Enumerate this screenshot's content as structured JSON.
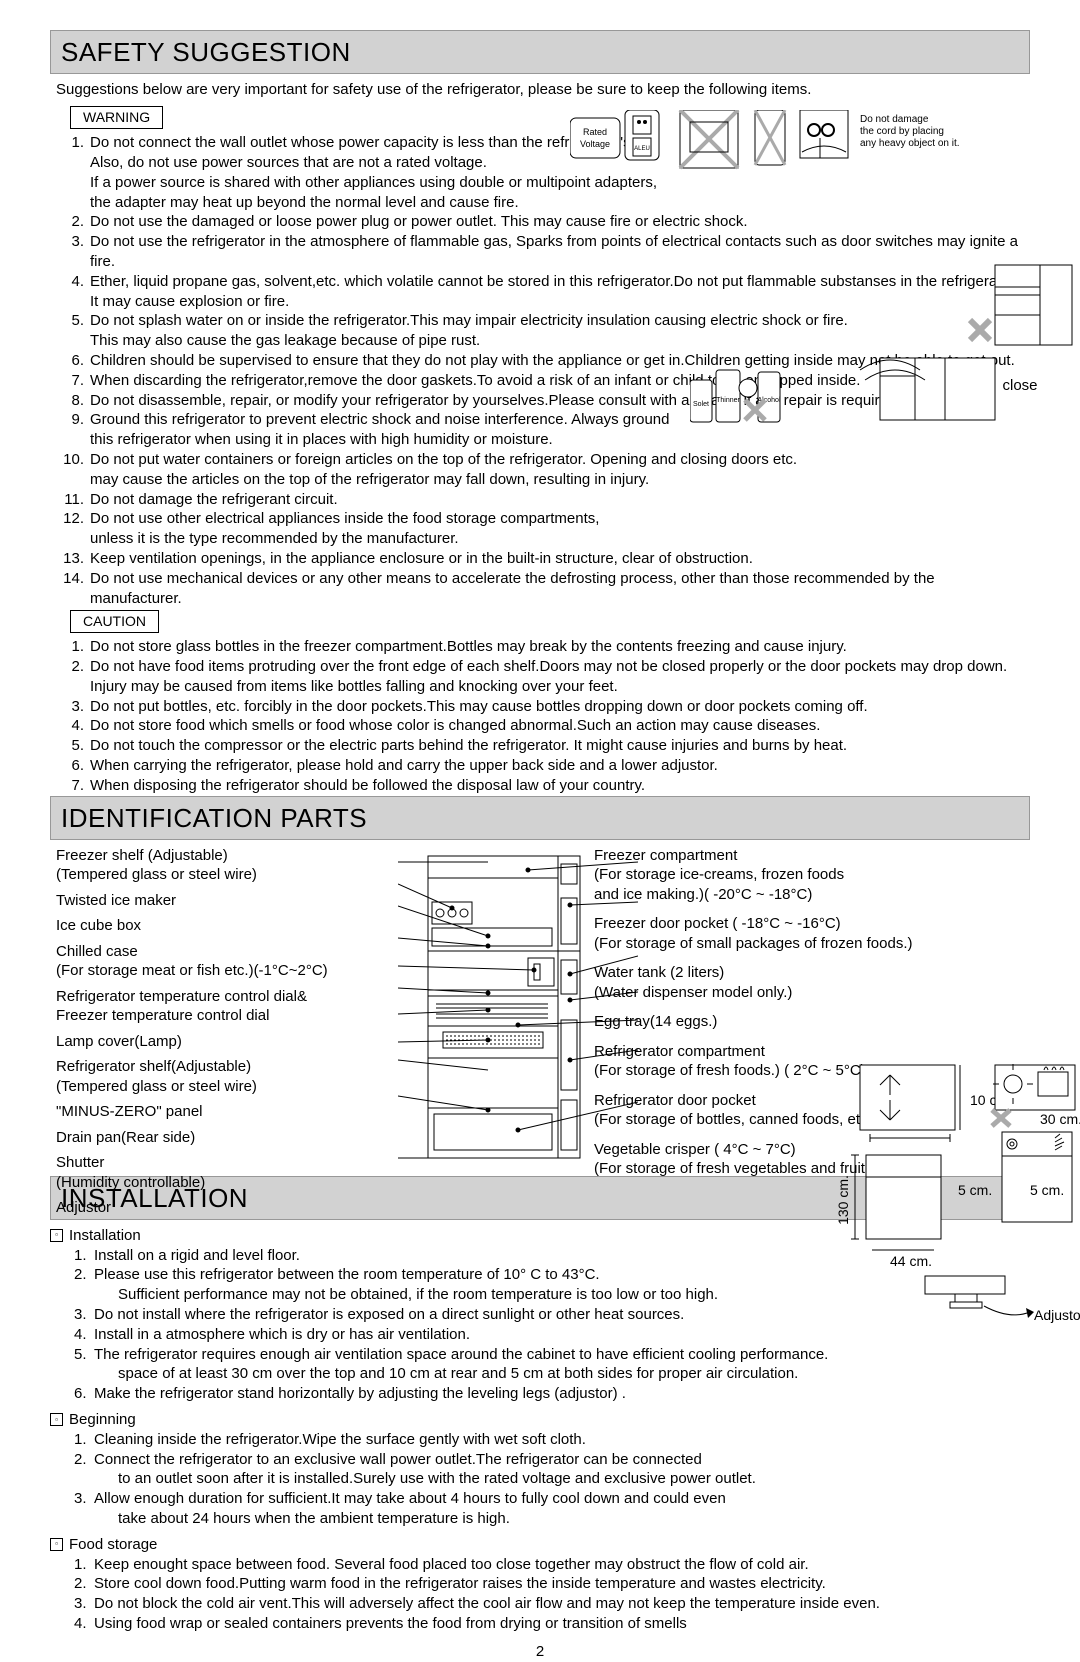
{
  "safety": {
    "title": "SAFETY SUGGESTION",
    "intro": "Suggestions below are very important for safety use of the refrigerator, please be sure to keep the following items.",
    "warning_label": "WARNING",
    "caution_label": "CAUTION",
    "warnings": [
      "Do not connect the wall outlet whose power capacity is less than the refrigerator's.\nAlso, do not use power  sources that are not a rated voltage.\nIf a power source is shared with other appliances using double or multipoint adapters,\nthe adapter may heat up beyond the normal level and cause fire.",
      "Do not use the damaged or loose power plug or power outlet. This may cause fire or electric shock.",
      "Do not use the refrigerator in the atmosphere of flammable gas, Sparks from points of electrical contacts such as door switches may ignite a fire.",
      "Ether, liquid propane gas, solvent,etc. which volatile cannot be stored in this refrigerator.Do not put flammable substanses in the refrigerator.\nIt may cause explosion or fire.",
      "Do not splash water on or inside the refrigerator.This may impair electricity insulation causing electric shock or fire.\nThis may also cause the gas leakage because of pipe rust.",
      "Children should be supervised to ensure that they do not play with the appliance or get in.Children getting inside may not be able to get out.",
      "When discarding the refrigerator,remove the door gaskets.To avoid a risk of an infant or child to be entrapped inside.",
      "Do not disassemble, repair, or modify your refrigerator by yourselves.Please consult with a retailer if any repair is required.",
      "Ground this refrigerator to prevent electric shock and noise interference. Always ground\nthis refrigerator when using it in places with high humidity or moisture.",
      "Do not put water containers or foreign articles on the top of the refrigerator. Opening and closing doors etc.\nmay cause the articles on the top of the refrigerator may fall down, resulting in injury.",
      "Do not damage the refrigerant circuit.",
      "Do not use other electrical appliances inside the food storage compartments,\nunless it is the type recommended by the manufacturer.",
      "Keep ventilation openings, in the appliance enclosure or in the built-in structure, clear of obstruction.",
      "Do not use mechanical devices or any other means to accelerate the defrosting process, other than those recommended by the manufacturer."
    ],
    "cautions": [
      "Do not store glass bottles in the freezer compartment.Bottles may break by the contents freezing and cause injury.",
      "Do not have food items protruding over the front edge of each shelf.Doors may not be closed properly or the door pockets may drop down.\nInjury may be caused from items like bottles falling and knocking over your feet.",
      "Do not put bottles, etc. forcibly in the door pockets.This may cause bottles dropping down or door pockets coming off.",
      "Do not store food which smells or food whose color is changed abnormal.Such an action may cause diseases.",
      "Do not touch the compressor or the electric parts behind the refrigerator. It might cause injuries and burns by heat.",
      "When carrying the refrigerator, please hold and carry the upper back side and a lower adjustor.",
      "When disposing the refrigerator should be followed the disposal law of your country."
    ],
    "rated_label1": "Rated",
    "rated_label2": "Voltage",
    "dmg_label1": "Do not damage",
    "dmg_label2": "the cord by placing",
    "dmg_label3": "any heavy object on it.",
    "close_label": "close"
  },
  "ident": {
    "title": "IDENTIFICATION PARTS",
    "left": [
      "Freezer shelf (Adjustable)\n(Tempered glass or steel wire)",
      "Twisted ice maker",
      "Ice cube box",
      "Chilled case\n(For storage meat or fish etc.)(-1°C~2°C)",
      "Refrigerator temperature control dial&\nFreezer temperature control dial",
      "Lamp cover(Lamp)",
      "Refrigerator shelf(Adjustable)\n(Tempered glass or steel wire)",
      "\"MINUS-ZERO\" panel",
      "Drain pan(Rear side)",
      "Shutter\n(Humidity controllable)",
      "Adjustor"
    ],
    "right": [
      "Freezer compartment\n(For storage ice-creams, frozen foods\nand ice making.)( -20°C ~ -18°C)",
      "Freezer door pocket ( -18°C ~ -16°C)\n(For storage of small packages of frozen foods.)",
      "Water tank (2 liters)\n(Water dispenser model only.)",
      "Egg tray(14 eggs.)",
      "Refrigerator compartment\n(For storage of fresh foods.) ( 2°C ~ 5°C)",
      "Refrigerator door pocket\n(For storage of bottles, canned foods, etc.)",
      "Vegetable crisper ( 4°C ~ 7°C)\n(For storage of fresh vegetables and fruit.)"
    ]
  },
  "install": {
    "title": "INSTALLATION",
    "sub_install": "Installation",
    "sub_begin": "Beginning",
    "sub_food": "Food storage",
    "install_items": [
      "Install on a rigid and level floor.",
      "Please use this refrigerator between the room temperature of 10° C to 43°C.\nSufficient performance may not be obtained, if the room temperature is too low or too high.",
      "Do not install where the refrigerator is exposed on a direct sunlight or other heat sources.",
      "Install in a atmosphere which is dry or has air ventilation.",
      "The refrigerator requires enough air ventilation space around the cabinet to have efficient cooling performance.\nspace of at least  30 cm over the top and 10 cm at rear and 5 cm at both sides for proper air circulation.",
      "Make the refrigerator stand horizontally by adjusting the leveling legs (adjustor) ."
    ],
    "begin_items": [
      "Cleaning inside the refrigerator.Wipe the surface gently with wet soft cloth.",
      "Connect the refrigerator to an exclusive wall power outlet.The refrigerator can be connected\nto an outlet soon after it is installed.Surely use with the rated voltage and exclusive power outlet.",
      "Allow enough duration for sufficient.It may take about 4 hours to fully cool down and could even\ntake about 24 hours when the ambient temperature is high."
    ],
    "food_items": [
      "Keep enought space between food. Several food placed too close together  may obstruct the flow of cold air.",
      "Store cool down food.Putting warm food in the refrigerator raises the inside temperature and  wastes electricity.",
      "Do not block the cold air vent.This will adversely affect the cool air flow and may not keep the temperature inside even.",
      "Using food wrap or sealed containers prevents the food from drying or transition of smells"
    ],
    "dims": {
      "d10": "10 cm.",
      "d30": "30 cm.",
      "d130": "130 cm.",
      "d5a": "5 cm.",
      "d5b": "5 cm.",
      "d44": "44 cm.",
      "adj": "Adjustor"
    }
  },
  "page_number": "2",
  "colors": {
    "header_bg": "#d2d2d2",
    "header_border": "#989898",
    "text": "#000000"
  }
}
